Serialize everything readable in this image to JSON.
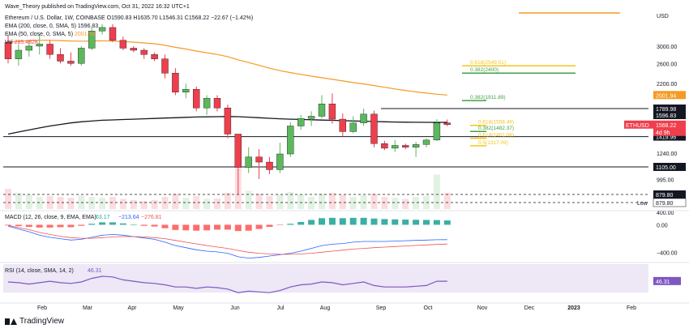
{
  "header": {
    "author_line": "Wave_Theory published on TradingView.com, Oct 31, 2022 16:32 UTC+1",
    "symbol_line": "Ethereum / U.S. Dollar, 1W, COINBASE  O1590.83  H1635.70  L1546.31  C1568.22  −22.67 (−1.42%)",
    "ema200_label": "EMA (200, close, 0, SMA, 5)",
    "ema200_value": "1596.83",
    "ema50_label": "EMA (50, close, 0, SMA, 5)",
    "ema50_value": "2001.94",
    "vol_label": "Vol",
    "vol_value": "285.482K"
  },
  "colors": {
    "up": "#5cb85c",
    "down": "#ef3f4c",
    "ema50": "#f59a23",
    "ema200": "#131722",
    "fib": "#f5c518",
    "fib_green": "#43a047",
    "macd_line": "#2962ff",
    "signal_line": "#ef5350",
    "rsi_line": "#7e57c2",
    "rsi_bg": "#ede7f6"
  },
  "chart_data": [
    {
      "type": "candlestick",
      "title": "Ethereum / U.S. Dollar, 1W, COINBASE",
      "currency_label": "USD",
      "price_axis_ticks": [
        "3000.00",
        "2600.00",
        "2200.00",
        "1240.00",
        "995.00",
        "400.00"
      ],
      "time_axis_labels": [
        "Feb",
        "Mar",
        "Apr",
        "May",
        "Jun",
        "Jul",
        "Aug",
        "Sep",
        "Oct",
        "Nov",
        "Dec",
        "2023",
        "Feb"
      ],
      "candles": [
        {
          "o": 3100,
          "h": 3300,
          "l": 2600,
          "c": 2700
        },
        {
          "o": 2700,
          "h": 3050,
          "l": 2550,
          "c": 2900
        },
        {
          "o": 2900,
          "h": 3150,
          "l": 2750,
          "c": 3000
        },
        {
          "o": 3000,
          "h": 3300,
          "l": 2800,
          "c": 3050
        },
        {
          "o": 3050,
          "h": 3150,
          "l": 2700,
          "c": 2800
        },
        {
          "o": 2800,
          "h": 2950,
          "l": 2600,
          "c": 2650
        },
        {
          "o": 2650,
          "h": 2850,
          "l": 2550,
          "c": 2600
        },
        {
          "o": 2600,
          "h": 3000,
          "l": 2550,
          "c": 2950
        },
        {
          "o": 2950,
          "h": 3500,
          "l": 2900,
          "c": 3400
        },
        {
          "o": 3400,
          "h": 3600,
          "l": 3300,
          "c": 3500
        },
        {
          "o": 3500,
          "h": 3600,
          "l": 3100,
          "c": 3150
        },
        {
          "o": 3150,
          "h": 3250,
          "l": 2900,
          "c": 2950
        },
        {
          "o": 2950,
          "h": 3000,
          "l": 2850,
          "c": 2900
        },
        {
          "o": 2900,
          "h": 2950,
          "l": 2700,
          "c": 2800
        },
        {
          "o": 2800,
          "h": 2850,
          "l": 2650,
          "c": 2700
        },
        {
          "o": 2700,
          "h": 2800,
          "l": 2300,
          "c": 2400
        },
        {
          "o": 2400,
          "h": 2500,
          "l": 2000,
          "c": 2050
        },
        {
          "o": 2050,
          "h": 2200,
          "l": 1950,
          "c": 2100
        },
        {
          "o": 2100,
          "h": 2150,
          "l": 1750,
          "c": 1800
        },
        {
          "o": 1800,
          "h": 2000,
          "l": 1700,
          "c": 1950
        },
        {
          "o": 1950,
          "h": 2000,
          "l": 1750,
          "c": 1800
        },
        {
          "o": 1800,
          "h": 1850,
          "l": 1400,
          "c": 1450
        },
        {
          "o": 1450,
          "h": 1450,
          "l": 880,
          "c": 1100
        },
        {
          "o": 1100,
          "h": 1300,
          "l": 1050,
          "c": 1200
        },
        {
          "o": 1200,
          "h": 1280,
          "l": 1000,
          "c": 1150
        },
        {
          "o": 1150,
          "h": 1200,
          "l": 1040,
          "c": 1080
        },
        {
          "o": 1080,
          "h": 1350,
          "l": 1050,
          "c": 1230
        },
        {
          "o": 1230,
          "h": 1600,
          "l": 1200,
          "c": 1550
        },
        {
          "o": 1550,
          "h": 1700,
          "l": 1500,
          "c": 1650
        },
        {
          "o": 1650,
          "h": 1750,
          "l": 1550,
          "c": 1680
        },
        {
          "o": 1680,
          "h": 2000,
          "l": 1650,
          "c": 1860
        },
        {
          "o": 1860,
          "h": 2030,
          "l": 1580,
          "c": 1640
        },
        {
          "o": 1640,
          "h": 1720,
          "l": 1420,
          "c": 1480
        },
        {
          "o": 1480,
          "h": 1680,
          "l": 1460,
          "c": 1590
        },
        {
          "o": 1590,
          "h": 1790,
          "l": 1550,
          "c": 1710
        },
        {
          "o": 1710,
          "h": 1760,
          "l": 1300,
          "c": 1340
        },
        {
          "o": 1340,
          "h": 1370,
          "l": 1270,
          "c": 1290
        },
        {
          "o": 1290,
          "h": 1380,
          "l": 1250,
          "c": 1320
        },
        {
          "o": 1320,
          "h": 1340,
          "l": 1280,
          "c": 1300
        },
        {
          "o": 1300,
          "h": 1360,
          "l": 1200,
          "c": 1330
        },
        {
          "o": 1330,
          "h": 1400,
          "l": 1300,
          "c": 1380
        },
        {
          "o": 1380,
          "h": 1640,
          "l": 1370,
          "c": 1590
        },
        {
          "o": 1590,
          "h": 1636,
          "l": 1546,
          "c": 1568
        }
      ],
      "ema200": [
        1450,
        1475,
        1500,
        1525,
        1550,
        1570,
        1590,
        1605,
        1615,
        1625,
        1630,
        1635,
        1640,
        1645,
        1650,
        1655,
        1660,
        1665,
        1670,
        1672,
        1674,
        1676,
        1674,
        1668,
        1660,
        1652,
        1645,
        1640,
        1636,
        1632,
        1628,
        1624,
        1620,
        1616,
        1612,
        1608,
        1605,
        1602,
        1600,
        1599,
        1598,
        1597,
        1597
      ],
      "ema50": [
        3100,
        3120,
        3140,
        3150,
        3150,
        3140,
        3130,
        3125,
        3130,
        3135,
        3130,
        3115,
        3100,
        3080,
        3060,
        3020,
        2970,
        2930,
        2880,
        2840,
        2800,
        2750,
        2680,
        2620,
        2560,
        2500,
        2450,
        2410,
        2375,
        2340,
        2310,
        2280,
        2250,
        2220,
        2195,
        2165,
        2135,
        2105,
        2080,
        2055,
        2035,
        2015,
        2002
      ],
      "volume_rel": [
        0.5,
        0.4,
        0.35,
        0.3,
        0.32,
        0.3,
        0.28,
        0.33,
        0.3,
        0.28,
        0.3,
        0.25,
        0.22,
        0.2,
        0.22,
        0.3,
        0.38,
        0.28,
        0.32,
        0.25,
        0.26,
        0.4,
        1.0,
        0.45,
        0.38,
        0.32,
        0.35,
        0.42,
        0.36,
        0.3,
        0.38,
        0.4,
        0.35,
        0.3,
        0.34,
        0.38,
        0.3,
        0.28,
        0.25,
        0.3,
        0.32,
        0.85,
        0.4
      ],
      "horizontal_levels": [
        {
          "label": "1789.98",
          "price": 1790
        },
        {
          "label": "1419.96",
          "price": 1420
        },
        {
          "label": "1105.00",
          "price": 1105
        },
        {
          "label": "879.80",
          "price": 880
        }
      ],
      "fib_levels": [
        {
          "label": "0.382(1911.89)",
          "price": 1912,
          "color": "green"
        },
        {
          "label": "0.618(1558.49)",
          "price": 1558,
          "color": "gold"
        },
        {
          "label": "0.382(1482.37)",
          "price": 1482,
          "color": "green"
        },
        {
          "label": "0.618(1401.08)",
          "price": 1401,
          "color": "gold"
        },
        {
          "label": "0.618(2549.51)",
          "price": 2550,
          "color": "gold"
        },
        {
          "label": "0.382(2400)",
          "price": 2400,
          "color": "green"
        },
        {
          "label": "0.5(1317.09)",
          "price": 1317,
          "color": "gold"
        }
      ],
      "price_labels": [
        {
          "label": "2001.94",
          "color": "#f59a23",
          "price": 2002
        },
        {
          "label": "1596.83",
          "color": "#131722",
          "price": 1597
        },
        {
          "label": "ETHUSD",
          "color": "#ef3f4c",
          "price": 1568
        },
        {
          "label": "1568.22",
          "color": "#ef3f4c",
          "price": 1568
        },
        {
          "label": "4d 9h",
          "color": "#ef3f4c",
          "price": 1520
        }
      ],
      "low_label": "Low",
      "low_value": "879.80"
    },
    {
      "type": "line",
      "title": "MACD (12, 26, close, 9, EMA, EMA)",
      "values_display": [
        "63.17",
        "−213.64",
        "−276.81"
      ],
      "axis_ticks": [
        "0.00",
        "−400.00"
      ],
      "macd": [
        -20,
        -60,
        -100,
        -150,
        -180,
        -200,
        -220,
        -210,
        -180,
        -150,
        -140,
        -150,
        -170,
        -190,
        -210,
        -250,
        -300,
        -330,
        -360,
        -380,
        -390,
        -410,
        -460,
        -480,
        -470,
        -450,
        -430,
        -410,
        -380,
        -340,
        -300,
        -280,
        -270,
        -250,
        -240,
        -240,
        -240,
        -235,
        -230,
        -225,
        -220,
        -215,
        -214
      ],
      "signal": [
        -10,
        -40,
        -70,
        -110,
        -140,
        -165,
        -185,
        -195,
        -195,
        -185,
        -175,
        -170,
        -170,
        -175,
        -185,
        -200,
        -225,
        -250,
        -275,
        -300,
        -320,
        -340,
        -370,
        -395,
        -410,
        -420,
        -425,
        -425,
        -420,
        -410,
        -395,
        -380,
        -365,
        -350,
        -340,
        -330,
        -322,
        -313,
        -305,
        -297,
        -290,
        -283,
        -277
      ],
      "histogram": [
        -10,
        -20,
        -30,
        -40,
        -40,
        -35,
        -35,
        -15,
        15,
        35,
        35,
        20,
        0,
        -15,
        -25,
        -50,
        -75,
        -80,
        -85,
        -80,
        -70,
        -70,
        -90,
        -85,
        -60,
        -30,
        -5,
        15,
        40,
        70,
        95,
        100,
        95,
        100,
        100,
        90,
        82,
        78,
        75,
        72,
        70,
        68,
        63
      ]
    },
    {
      "type": "line",
      "title": "RSI (14, close, SMA, 14, 2)",
      "value_display": "46.31",
      "rsi": [
        45,
        44,
        42,
        44,
        46,
        44,
        43,
        45,
        50,
        53,
        52,
        48,
        46,
        44,
        43,
        41,
        38,
        38,
        36,
        38,
        37,
        35,
        30,
        32,
        31,
        30,
        33,
        38,
        41,
        42,
        45,
        44,
        41,
        43,
        45,
        40,
        38,
        38,
        38,
        39,
        40,
        46,
        46
      ]
    }
  ],
  "footer": {
    "brand": "TradingView"
  }
}
